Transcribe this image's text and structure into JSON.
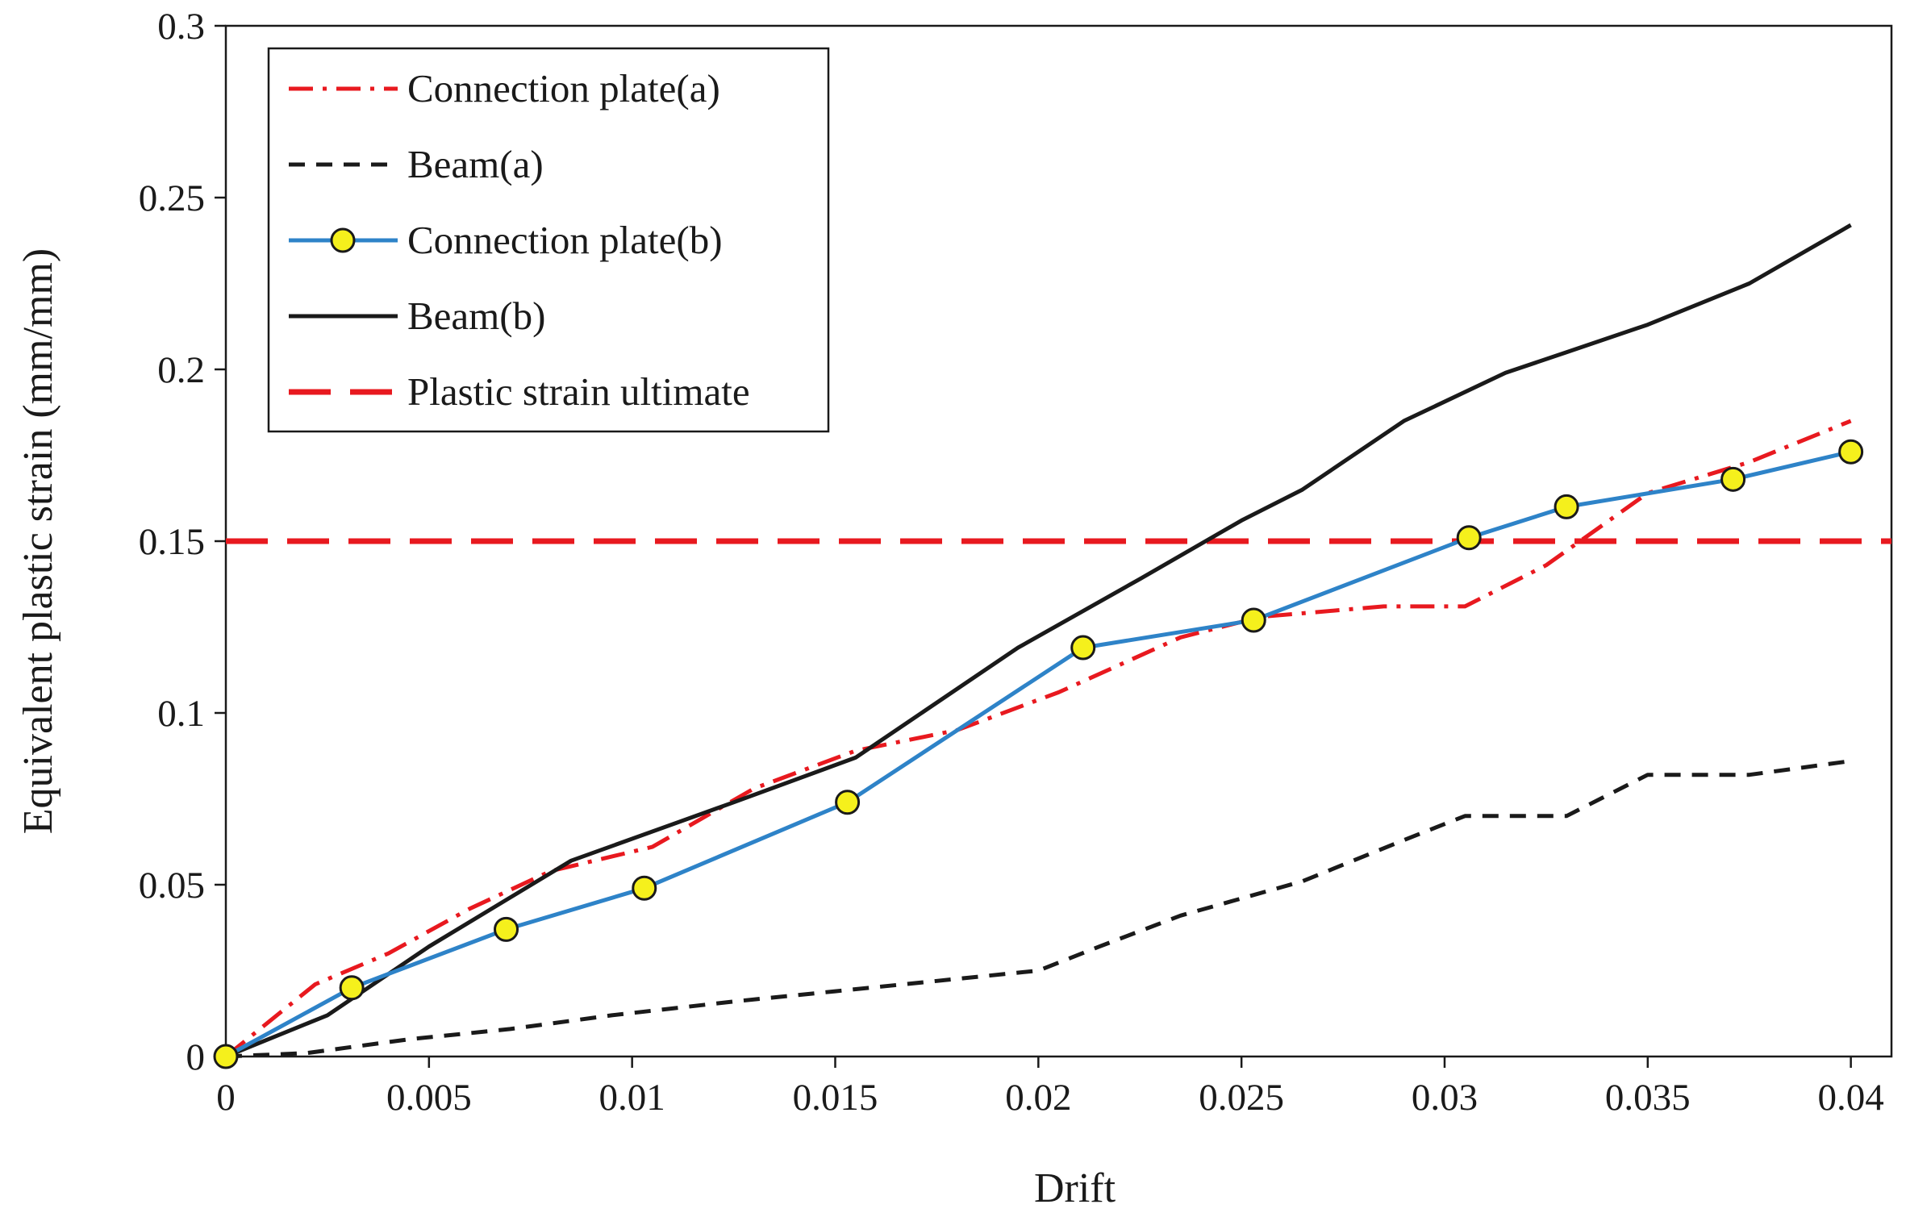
{
  "chart_data": {
    "type": "line",
    "title": "",
    "xlabel": "Drift",
    "ylabel": "Equivalent plastic strain (mm/mm)",
    "xlim": [
      0,
      0.041
    ],
    "ylim": [
      0,
      0.3
    ],
    "xticks": [
      0,
      0.005,
      0.01,
      0.015,
      0.02,
      0.025,
      0.03,
      0.035,
      0.04
    ],
    "xtick_labels": [
      "0",
      "0.005",
      "0.01",
      "0.015",
      "0.02",
      "0.025",
      "0.03",
      "0.035",
      "0.04"
    ],
    "yticks": [
      0,
      0.05,
      0.1,
      0.15,
      0.2,
      0.25,
      0.3
    ],
    "ytick_labels": [
      "0",
      "0.05",
      "0.1",
      "0.15",
      "0.2",
      "0.25",
      "0.3"
    ],
    "grid": false,
    "legend_position": "top-left",
    "series": [
      {
        "name": "Connection plate(a)",
        "color": "#e8191f",
        "style": "dash-dot",
        "marker": "none",
        "x": [
          0,
          0.0022,
          0.004,
          0.006,
          0.008,
          0.0105,
          0.013,
          0.0155,
          0.018,
          0.0205,
          0.0235,
          0.0255,
          0.0285,
          0.0305,
          0.0325,
          0.035,
          0.0375,
          0.04
        ],
        "y": [
          0,
          0.021,
          0.03,
          0.043,
          0.054,
          0.061,
          0.078,
          0.089,
          0.095,
          0.106,
          0.122,
          0.128,
          0.131,
          0.131,
          0.143,
          0.164,
          0.173,
          0.185
        ]
      },
      {
        "name": "Beam(a)",
        "color": "#1a1a1a",
        "style": "dash",
        "marker": "none",
        "x": [
          0,
          0.002,
          0.0045,
          0.007,
          0.0095,
          0.0125,
          0.015,
          0.0175,
          0.02,
          0.0215,
          0.0235,
          0.0265,
          0.029,
          0.0305,
          0.033,
          0.035,
          0.0375,
          0.04
        ],
        "y": [
          0,
          0.001,
          0.005,
          0.008,
          0.012,
          0.016,
          0.019,
          0.022,
          0.025,
          0.032,
          0.041,
          0.051,
          0.063,
          0.07,
          0.07,
          0.082,
          0.082,
          0.086
        ]
      },
      {
        "name": "Connection plate(b)",
        "color": "#2e83c8",
        "style": "solid",
        "marker": "circle",
        "marker_color": "#f5f01c",
        "x": [
          0,
          0.0031,
          0.0069,
          0.0103,
          0.0153,
          0.0211,
          0.0253,
          0.0306,
          0.033,
          0.0371,
          0.04
        ],
        "y": [
          0,
          0.02,
          0.037,
          0.049,
          0.074,
          0.119,
          0.127,
          0.151,
          0.16,
          0.168,
          0.176
        ]
      },
      {
        "name": "Beam(b)",
        "color": "#1a1a1a",
        "style": "solid",
        "marker": "none",
        "x": [
          0,
          0.0025,
          0.005,
          0.0085,
          0.0125,
          0.0155,
          0.0195,
          0.0225,
          0.025,
          0.0265,
          0.029,
          0.0315,
          0.033,
          0.035,
          0.0375,
          0.04
        ],
        "y": [
          0,
          0.012,
          0.032,
          0.057,
          0.074,
          0.087,
          0.119,
          0.139,
          0.156,
          0.165,
          0.185,
          0.199,
          0.205,
          0.213,
          0.225,
          0.242
        ]
      },
      {
        "name": "Plastic strain ultimate",
        "color": "#e8191f",
        "style": "long-dash",
        "marker": "none",
        "x": [
          0,
          0.041
        ],
        "y": [
          0.15,
          0.15
        ]
      }
    ]
  }
}
